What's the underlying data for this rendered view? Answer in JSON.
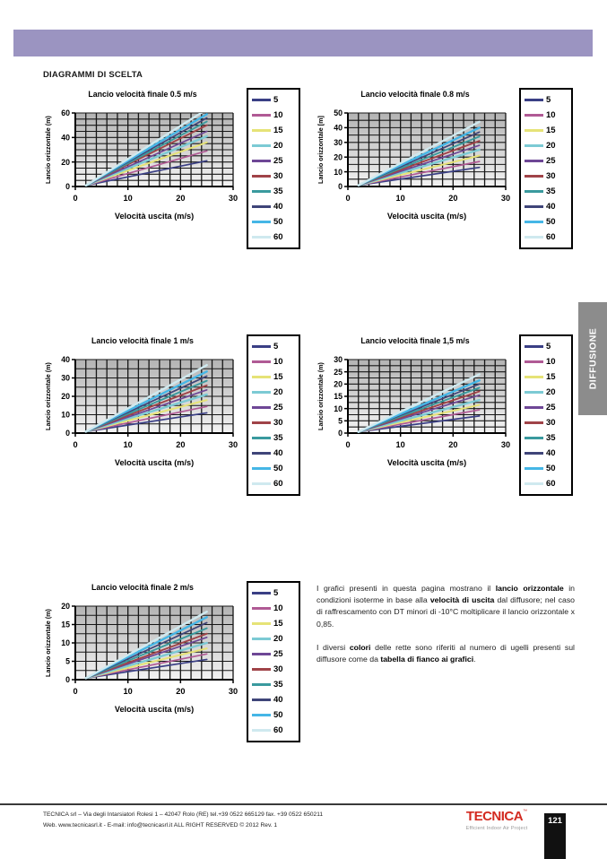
{
  "colors": {
    "header_bar": "#9b94c1",
    "side_tab": "#8c8c8c",
    "logo_red": "#d32a20",
    "page_tab_bg": "#111111",
    "plot_grid": "#161616",
    "plot_bg_top": "#b3b3b3",
    "plot_bg_bottom": "#f3f3f3"
  },
  "header": {
    "section_title": "DIAGRAMMI DI SCELTA"
  },
  "side_tab": {
    "label": "DIFFUSIONE"
  },
  "legend": {
    "entries": [
      {
        "label": "5",
        "color": "#3a3f85",
        "line_width": 1.7
      },
      {
        "label": "10",
        "color": "#b05a95",
        "line_width": 1.7
      },
      {
        "label": "15",
        "color": "#e6e377",
        "line_width": 2.0
      },
      {
        "label": "20",
        "color": "#7ccad4",
        "line_width": 2.4
      },
      {
        "label": "25",
        "color": "#6e4796",
        "line_width": 1.7
      },
      {
        "label": "30",
        "color": "#a04348",
        "line_width": 1.9
      },
      {
        "label": "35",
        "color": "#3a9a9e",
        "line_width": 1.9
      },
      {
        "label": "40",
        "color": "#3f4579",
        "line_width": 1.7
      },
      {
        "label": "50",
        "color": "#45b6e6",
        "line_width": 2.4
      },
      {
        "label": "60",
        "color": "#cfe9ef",
        "line_width": 2.4
      }
    ]
  },
  "chart_data": [
    {
      "type": "line",
      "title": "Lancio velocità finale 0.5 m/s",
      "xlabel": "Velocità uscita (m/s)",
      "ylabel": "Lancio orizzontale (m)",
      "xlim": [
        0,
        30
      ],
      "ylim": [
        0,
        60
      ],
      "xticks": [
        0,
        10,
        20,
        30
      ],
      "yticks": [
        0,
        20,
        40,
        60
      ],
      "xgrid_step": 2,
      "ygrid_step": 5,
      "grid": true,
      "legend_position": "right",
      "series": [
        {
          "name": "5",
          "x": [
            2,
            25
          ],
          "y": [
            0.8,
            21
          ]
        },
        {
          "name": "10",
          "x": [
            2,
            25
          ],
          "y": [
            0.8,
            29
          ]
        },
        {
          "name": "15",
          "x": [
            2,
            25
          ],
          "y": [
            0.8,
            36
          ]
        },
        {
          "name": "20",
          "x": [
            2,
            25
          ],
          "y": [
            0.8,
            41
          ]
        },
        {
          "name": "25",
          "x": [
            2,
            25
          ],
          "y": [
            0.8,
            45
          ]
        },
        {
          "name": "30",
          "x": [
            2,
            25
          ],
          "y": [
            0.8,
            50
          ]
        },
        {
          "name": "35",
          "x": [
            2,
            25
          ],
          "y": [
            0.8,
            53
          ]
        },
        {
          "name": "40",
          "x": [
            2,
            25
          ],
          "y": [
            0.8,
            56
          ]
        },
        {
          "name": "50",
          "x": [
            2,
            25
          ],
          "y": [
            0.8,
            59
          ]
        },
        {
          "name": "60",
          "x": [
            2,
            25
          ],
          "y": [
            0.8,
            63
          ]
        }
      ]
    },
    {
      "type": "line",
      "title": "Lancio velocità finale 0.8 m/s",
      "xlabel": "Velocità uscita (m/s)",
      "ylabel": "Lancio orizzontale [m]",
      "xlim": [
        0,
        30
      ],
      "ylim": [
        0,
        50
      ],
      "xticks": [
        0,
        10,
        20,
        30
      ],
      "yticks": [
        0,
        10,
        20,
        30,
        40,
        50
      ],
      "xgrid_step": 2,
      "ygrid_step": 5,
      "grid": true,
      "legend_position": "right",
      "series": [
        {
          "name": "5",
          "x": [
            2,
            25
          ],
          "y": [
            0.8,
            13
          ]
        },
        {
          "name": "10",
          "x": [
            2,
            25
          ],
          "y": [
            0.8,
            17
          ]
        },
        {
          "name": "15",
          "x": [
            2,
            25
          ],
          "y": [
            0.8,
            21
          ]
        },
        {
          "name": "20",
          "x": [
            2,
            25
          ],
          "y": [
            0.8,
            25
          ]
        },
        {
          "name": "25",
          "x": [
            2,
            25
          ],
          "y": [
            0.8,
            28
          ]
        },
        {
          "name": "30",
          "x": [
            2,
            25
          ],
          "y": [
            0.8,
            31
          ]
        },
        {
          "name": "35",
          "x": [
            2,
            25
          ],
          "y": [
            0.8,
            34
          ]
        },
        {
          "name": "40",
          "x": [
            2,
            25
          ],
          "y": [
            0.8,
            37
          ]
        },
        {
          "name": "50",
          "x": [
            2,
            25
          ],
          "y": [
            0.8,
            40
          ]
        },
        {
          "name": "60",
          "x": [
            2,
            25
          ],
          "y": [
            0.8,
            44
          ]
        }
      ]
    },
    {
      "type": "line",
      "title": "Lancio velocità finale 1 m/s",
      "xlabel": "Velocità uscita (m/s)",
      "ylabel": "Lancio orizzontale (m)",
      "xlim": [
        0,
        30
      ],
      "ylim": [
        0,
        40
      ],
      "xticks": [
        0,
        10,
        20,
        30
      ],
      "yticks": [
        0,
        10,
        20,
        30,
        40
      ],
      "xgrid_step": 2,
      "ygrid_step": 5,
      "grid": true,
      "legend_position": "right",
      "series": [
        {
          "name": "5",
          "x": [
            2,
            25
          ],
          "y": [
            0.8,
            11
          ]
        },
        {
          "name": "10",
          "x": [
            2,
            25
          ],
          "y": [
            0.8,
            14.5
          ]
        },
        {
          "name": "15",
          "x": [
            2,
            25
          ],
          "y": [
            0.8,
            18
          ]
        },
        {
          "name": "20",
          "x": [
            2,
            25
          ],
          "y": [
            0.8,
            21
          ]
        },
        {
          "name": "25",
          "x": [
            2,
            25
          ],
          "y": [
            0.8,
            23.5
          ]
        },
        {
          "name": "30",
          "x": [
            2,
            25
          ],
          "y": [
            0.8,
            26
          ]
        },
        {
          "name": "35",
          "x": [
            2,
            25
          ],
          "y": [
            0.8,
            28.5
          ]
        },
        {
          "name": "40",
          "x": [
            2,
            25
          ],
          "y": [
            0.8,
            31
          ]
        },
        {
          "name": "50",
          "x": [
            2,
            25
          ],
          "y": [
            0.8,
            33.5
          ]
        },
        {
          "name": "60",
          "x": [
            2,
            25
          ],
          "y": [
            0.8,
            37
          ]
        }
      ]
    },
    {
      "type": "line",
      "title": "Lancio velocità finale 1,5 m/s",
      "xlabel": "Velocità uscita (m/s)",
      "ylabel": "Lancio orizzontale (m)",
      "xlim": [
        0,
        30
      ],
      "ylim": [
        0,
        30
      ],
      "xticks": [
        0,
        10,
        20,
        30
      ],
      "yticks": [
        0,
        5,
        10,
        15,
        20,
        25,
        30
      ],
      "xgrid_step": 2,
      "ygrid_step": 2.5,
      "grid": true,
      "legend_position": "right",
      "series": [
        {
          "name": "5",
          "x": [
            2,
            25
          ],
          "y": [
            0.5,
            7
          ]
        },
        {
          "name": "10",
          "x": [
            2,
            25
          ],
          "y": [
            0.5,
            9.5
          ]
        },
        {
          "name": "15",
          "x": [
            2,
            25
          ],
          "y": [
            0.5,
            11.5
          ]
        },
        {
          "name": "20",
          "x": [
            2,
            25
          ],
          "y": [
            0.5,
            13.5
          ]
        },
        {
          "name": "25",
          "x": [
            2,
            25
          ],
          "y": [
            0.5,
            15.5
          ]
        },
        {
          "name": "30",
          "x": [
            2,
            25
          ],
          "y": [
            0.5,
            17
          ]
        },
        {
          "name": "35",
          "x": [
            2,
            25
          ],
          "y": [
            0.5,
            18.5
          ]
        },
        {
          "name": "40",
          "x": [
            2,
            25
          ],
          "y": [
            0.5,
            20
          ]
        },
        {
          "name": "50",
          "x": [
            2,
            25
          ],
          "y": [
            0.5,
            21.5
          ]
        },
        {
          "name": "60",
          "x": [
            2,
            25
          ],
          "y": [
            0.5,
            24
          ]
        }
      ]
    },
    {
      "type": "line",
      "title": "Lancio velocità finale 2 m/s",
      "xlabel": "Velocità uscita (m/s)",
      "ylabel": "Lancio orizzontale (m)",
      "xlim": [
        0,
        30
      ],
      "ylim": [
        0,
        20
      ],
      "xticks": [
        0,
        10,
        20,
        30
      ],
      "yticks": [
        0,
        5,
        10,
        15,
        20
      ],
      "xgrid_step": 2,
      "ygrid_step": 2.5,
      "grid": true,
      "legend_position": "right",
      "series": [
        {
          "name": "5",
          "x": [
            2,
            25
          ],
          "y": [
            0.4,
            5.5
          ]
        },
        {
          "name": "10",
          "x": [
            2,
            25
          ],
          "y": [
            0.4,
            7
          ]
        },
        {
          "name": "15",
          "x": [
            2,
            25
          ],
          "y": [
            0.4,
            8.5
          ]
        },
        {
          "name": "20",
          "x": [
            2,
            25
          ],
          "y": [
            0.4,
            10
          ]
        },
        {
          "name": "25",
          "x": [
            2,
            25
          ],
          "y": [
            0.4,
            11.5
          ]
        },
        {
          "name": "30",
          "x": [
            2,
            25
          ],
          "y": [
            0.4,
            12.5
          ]
        },
        {
          "name": "35",
          "x": [
            2,
            25
          ],
          "y": [
            0.4,
            14
          ]
        },
        {
          "name": "40",
          "x": [
            2,
            25
          ],
          "y": [
            0.4,
            15.5
          ]
        },
        {
          "name": "50",
          "x": [
            2,
            25
          ],
          "y": [
            0.4,
            17
          ]
        },
        {
          "name": "60",
          "x": [
            2,
            25
          ],
          "y": [
            0.4,
            18.5
          ]
        }
      ]
    }
  ],
  "notes": {
    "paragraphs": [
      {
        "segments": [
          {
            "text": "I grafici presenti in questa pagina mostrano il ",
            "bold": false
          },
          {
            "text": "lancio orizzontale",
            "bold": true
          },
          {
            "text": " in condizioni isoterme in base alla ",
            "bold": false
          },
          {
            "text": "velocità di uscita",
            "bold": true
          },
          {
            "text": " dal diffusore; nel caso di raffrescamento con  DT minori di -10°C moltiplicare il lancio orizzontale x 0,85.",
            "bold": false
          }
        ]
      },
      {
        "segments": [
          {
            "text": "I diversi ",
            "bold": false
          },
          {
            "text": "colori",
            "bold": true
          },
          {
            "text": " delle rette sono riferiti al numero di ugelli presenti sul diffusore come da ",
            "bold": false
          },
          {
            "text": "tabella di fianco ai grafici",
            "bold": true
          },
          {
            "text": ".",
            "bold": false
          }
        ]
      }
    ]
  },
  "footer": {
    "line1": "TECNICA srl – Via degli Intarsiatori Rolesi 1 – 42047 Rolo (RE) tel.+39 0522 665129 fax. +39 0522 650211",
    "line2": "Web. www.tecnicasrl.it  - E-mail: info@tecnicasrl.it   ALL RIGHT RESERVED  © 2012  Rev. 1",
    "logo_text": "TECNICA",
    "logo_mark": "™",
    "logo_tagline": "Efficient Indoor Air Project",
    "page_number": "121"
  }
}
